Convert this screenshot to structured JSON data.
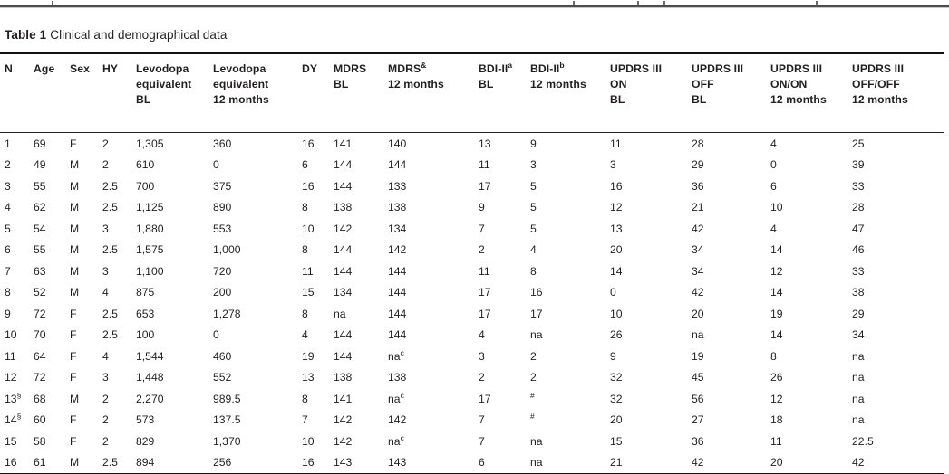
{
  "title": {
    "label": "Table 1",
    "caption": "Clinical and demographical data"
  },
  "table": {
    "headers": [
      [
        "N"
      ],
      [
        "Age"
      ],
      [
        "Sex"
      ],
      [
        "HY"
      ],
      [
        "Levodopa",
        "equivalent",
        "BL"
      ],
      [
        "Levodopa",
        "equivalent",
        "12 months"
      ],
      [
        "DY"
      ],
      [
        "MDRS",
        "BL"
      ],
      [
        "MDRS^&",
        "12 months"
      ],
      [
        "BDI-II^a",
        "BL"
      ],
      [
        "BDI-II^b",
        "12 months"
      ],
      [
        "UPDRS III",
        "ON",
        "BL"
      ],
      [
        "UPDRS III",
        "OFF",
        "BL"
      ],
      [
        "UPDRS III",
        "ON/ON",
        "12 months"
      ],
      [
        "UPDRS III",
        "OFF/OFF",
        "12 months"
      ]
    ],
    "rows": [
      [
        "1",
        "69",
        "F",
        "2",
        "1,305",
        "360",
        "16",
        "141",
        "140",
        "13",
        "9",
        "11",
        "28",
        "4",
        "25"
      ],
      [
        "2",
        "49",
        "M",
        "2",
        "610",
        "0",
        "6",
        "144",
        "144",
        "11",
        "3",
        "3",
        "29",
        "0",
        "39"
      ],
      [
        "3",
        "55",
        "M",
        "2.5",
        "700",
        "375",
        "16",
        "144",
        "133",
        "17",
        "5",
        "16",
        "36",
        "6",
        "33"
      ],
      [
        "4",
        "62",
        "M",
        "2.5",
        "1,125",
        "890",
        "8",
        "138",
        "138",
        "9",
        "5",
        "12",
        "21",
        "10",
        "28"
      ],
      [
        "5",
        "54",
        "M",
        "3",
        "1,880",
        "553",
        "10",
        "142",
        "134",
        "7",
        "5",
        "13",
        "42",
        "4",
        "47"
      ],
      [
        "6",
        "55",
        "M",
        "2.5",
        "1,575",
        "1,000",
        "8",
        "144",
        "142",
        "2",
        "4",
        "20",
        "34",
        "14",
        "46"
      ],
      [
        "7",
        "63",
        "M",
        "3",
        "1,100",
        "720",
        "11",
        "144",
        "144",
        "11",
        "8",
        "14",
        "34",
        "12",
        "33"
      ],
      [
        "8",
        "52",
        "M",
        "4",
        "875",
        "200",
        "15",
        "134",
        "144",
        "17",
        "16",
        "0",
        "42",
        "14",
        "38"
      ],
      [
        "9",
        "72",
        "F",
        "2.5",
        "653",
        "1,278",
        "8",
        "na",
        "144",
        "17",
        "17",
        "10",
        "20",
        "19",
        "29"
      ],
      [
        "10",
        "70",
        "F",
        "2.5",
        "100",
        "0",
        "4",
        "144",
        "144",
        "4",
        "na",
        "26",
        "na",
        "14",
        "34"
      ],
      [
        "11",
        "64",
        "F",
        "4",
        "1,544",
        "460",
        "19",
        "144",
        "na^c",
        "3",
        "2",
        "9",
        "19",
        "8",
        "na"
      ],
      [
        "12",
        "72",
        "F",
        "3",
        "1,448",
        "552",
        "13",
        "138",
        "138",
        "2",
        "2",
        "32",
        "45",
        "26",
        "na"
      ],
      [
        "13^§",
        "68",
        "M",
        "2",
        "2,270",
        "989.5",
        "8",
        "141",
        "na^c",
        "17",
        "^#",
        "32",
        "56",
        "12",
        "na"
      ],
      [
        "14^§",
        "60",
        "F",
        "2",
        "573",
        "137.5",
        "7",
        "142",
        "142",
        "7",
        "^#",
        "20",
        "27",
        "18",
        "na"
      ],
      [
        "15",
        "58",
        "F",
        "2",
        "829",
        "1,370",
        "10",
        "142",
        "na^c",
        "7",
        "na",
        "15",
        "36",
        "11",
        "22.5"
      ],
      [
        "16",
        "61",
        "M",
        "2.5",
        "894",
        "256",
        "16",
        "143",
        "143",
        "6",
        "na",
        "21",
        "42",
        "20",
        "42"
      ]
    ]
  },
  "colors": {
    "text": "#231f20",
    "rule": "#111111",
    "top_divider": "#4d4d4d",
    "background": "#ffffff"
  }
}
